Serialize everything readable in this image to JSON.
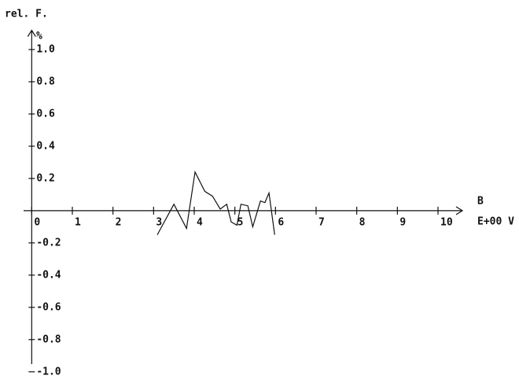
{
  "chart_data": {
    "type": "line",
    "y_label": "rel. F.",
    "y_unit": "%",
    "x_label": "B",
    "x_unit": "E+00 V",
    "x": [
      3.09,
      3.5,
      3.81,
      4.02,
      4.26,
      4.45,
      4.64,
      4.8,
      4.91,
      5.05,
      5.15,
      5.32,
      5.44,
      5.63,
      5.74,
      5.84,
      5.98
    ],
    "values": [
      -0.15,
      0.04,
      -0.11,
      0.24,
      0.12,
      0.09,
      0.01,
      0.04,
      -0.07,
      -0.09,
      0.04,
      0.03,
      -0.1,
      0.06,
      0.05,
      0.11,
      -0.15
    ],
    "color": "#000000",
    "xlim": [
      -0.2,
      10.6
    ],
    "ylim": [
      -1.05,
      1.1
    ],
    "xticks": [
      0,
      1,
      2,
      3,
      4,
      5,
      6,
      7,
      8,
      9,
      10
    ],
    "yticks": [
      {
        "value": 1,
        "label": "1.0"
      },
      0.8,
      0.6,
      0.4,
      0.2,
      -0.2,
      -0.4,
      -0.6,
      -0.8,
      {
        "value": -1,
        "label": "-1.0"
      }
    ]
  }
}
